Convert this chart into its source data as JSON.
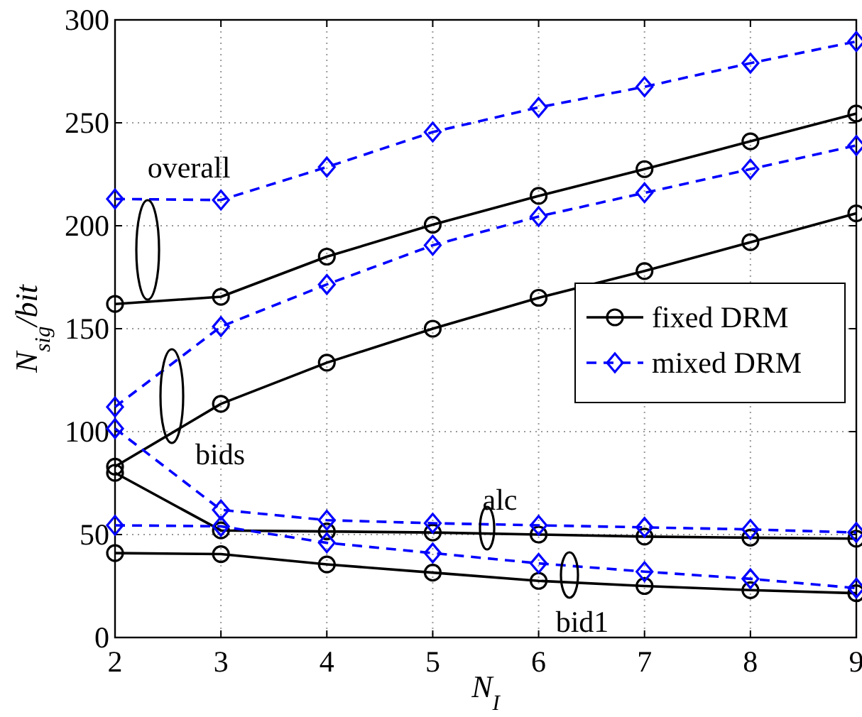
{
  "chart_data": {
    "type": "line",
    "xlabel": "N$_{I}$",
    "ylabel": "N$_{sig}$/bit",
    "x": [
      2,
      3,
      4,
      5,
      6,
      7,
      8,
      9
    ],
    "series": [
      {
        "name": "fixed DRM",
        "color": "#000000",
        "marker": "circle",
        "line_style": "solid",
        "values": [
          162,
          165.5,
          185,
          200.5,
          214.5,
          227.5,
          241,
          254.5
        ]
      },
      {
        "color": "#000000",
        "marker": "circle",
        "line_style": "solid",
        "values": [
          83,
          113.5,
          133.5,
          150,
          165,
          178,
          192,
          206
        ]
      },
      {
        "color": "#000000",
        "marker": "circle",
        "line_style": "solid",
        "values": [
          80,
          52,
          51.5,
          51,
          50,
          49,
          48.5,
          48
        ]
      },
      {
        "color": "#000000",
        "marker": "circle",
        "line_style": "solid",
        "values": [
          41,
          40.5,
          35.5,
          31.5,
          27.5,
          25,
          23,
          21.5
        ]
      },
      {
        "name": "mixed DRM",
        "color": "#0000ff",
        "marker": "diamond",
        "line_style": "dashed",
        "values": [
          213,
          212.5,
          228.5,
          245.5,
          257.5,
          267.5,
          279,
          289.5
        ]
      },
      {
        "color": "#0000ff",
        "marker": "diamond",
        "line_style": "dashed",
        "values": [
          112,
          151,
          171.5,
          190.5,
          204.5,
          216,
          227.5,
          239
        ]
      },
      {
        "color": "#0000ff",
        "marker": "diamond",
        "line_style": "dashed",
        "values": [
          101.5,
          62,
          57,
          55.5,
          54.5,
          53.5,
          52.5,
          51
        ]
      },
      {
        "color": "#0000ff",
        "marker": "diamond",
        "line_style": "dashed",
        "values": [
          54.5,
          54,
          46,
          41,
          36,
          32,
          28.5,
          24
        ]
      }
    ],
    "annotations": [
      "overall",
      "bids",
      "alc",
      "bid1"
    ],
    "xlim": [
      2,
      9
    ],
    "ylim": [
      0,
      300
    ],
    "xticks": [
      2,
      3,
      4,
      5,
      6,
      7,
      8,
      9
    ],
    "yticks": [
      0,
      50,
      100,
      150,
      200,
      250,
      300
    ],
    "grid": true,
    "legend": "right"
  }
}
